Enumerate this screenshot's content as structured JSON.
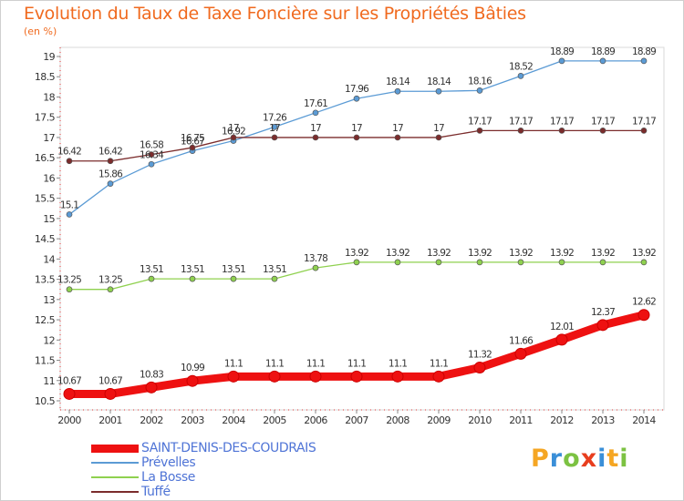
{
  "header": {
    "title": "Evolution du Taux de Taxe Foncière sur les Propriétés Bâties",
    "unit": "(en %)"
  },
  "logo": {
    "text": "Proxiti",
    "colors": [
      "#f5a623",
      "#3a8fd8",
      "#7cc242",
      "#e83e1e",
      "#3a8fd8",
      "#f5a623",
      "#7cc242"
    ]
  },
  "chart_data": {
    "type": "line",
    "x": [
      2000,
      2001,
      2002,
      2003,
      2004,
      2005,
      2006,
      2007,
      2008,
      2009,
      2010,
      2011,
      2012,
      2013,
      2014
    ],
    "ylim": [
      10.5,
      19
    ],
    "yticks": [
      "10.5",
      "11",
      "11.5",
      "12",
      "12.5",
      "13",
      "13.5",
      "14",
      "14.5",
      "15",
      "15.5",
      "16",
      "16.5",
      "17",
      "17.5",
      "18",
      "18.5",
      "19"
    ],
    "grid": false,
    "legend_position": "bottom-left",
    "series": [
      {
        "name": "SAINT-DENIS-DES-COUDRAIS",
        "color": "#ee1111",
        "values": [
          10.67,
          10.67,
          10.83,
          10.99,
          11.1,
          11.1,
          11.1,
          11.1,
          11.1,
          11.1,
          11.32,
          11.66,
          12.01,
          12.37,
          12.62
        ],
        "labels": [
          "10.67",
          "10.67",
          "10.83",
          "10.99",
          "11.1",
          "11.1",
          "11.1",
          "11.1",
          "11.1",
          "11.1",
          "11.32",
          "11.66",
          "12.01",
          "12.37",
          "12.62"
        ]
      },
      {
        "name": "Prévelles",
        "color": "#5b9bd5",
        "values": [
          15.1,
          15.86,
          16.34,
          16.67,
          16.92,
          17.26,
          17.61,
          17.96,
          18.14,
          18.14,
          18.16,
          18.52,
          18.89,
          18.89,
          18.89
        ],
        "labels": [
          "15.1",
          "15.86",
          "16.34",
          "16.67",
          "16.92",
          "17.26",
          "17.61",
          "17.96",
          "18.14",
          "18.14",
          "18.16",
          "18.52",
          "18.89",
          "18.89",
          "18.89"
        ]
      },
      {
        "name": "La Bosse",
        "color": "#8fd14f",
        "values": [
          13.25,
          13.25,
          13.51,
          13.51,
          13.51,
          13.51,
          13.78,
          13.92,
          13.92,
          13.92,
          13.92,
          13.92,
          13.92,
          13.92,
          13.92
        ],
        "labels": [
          "13.25",
          "13.25",
          "13.51",
          "13.51",
          "13.51",
          "13.51",
          "13.78",
          "13.92",
          "13.92",
          "13.92",
          "13.92",
          "13.92",
          "13.92",
          "13.92",
          "13.92"
        ]
      },
      {
        "name": "Tuffé",
        "color": "#7b2c2c",
        "values": [
          16.42,
          16.42,
          16.58,
          16.75,
          17,
          17,
          17,
          17,
          17,
          17,
          17.17,
          17.17,
          17.17,
          17.17,
          17.17
        ],
        "labels": [
          "16.42",
          "16.42",
          "16.58",
          "16.75",
          "17",
          "17",
          "17",
          "17",
          "17",
          "17",
          "17.17",
          "17.17",
          "17.17",
          "17.17",
          "17.17"
        ]
      }
    ]
  }
}
